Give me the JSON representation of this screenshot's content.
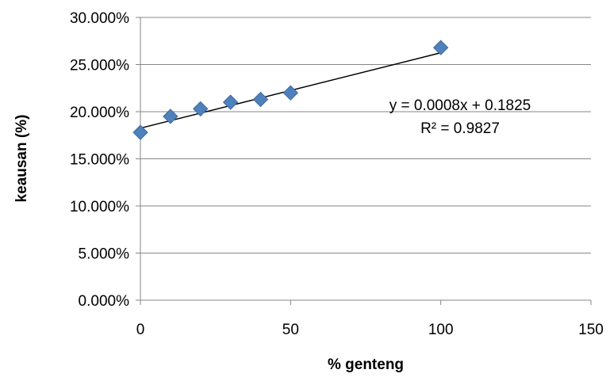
{
  "chart_data": {
    "type": "scatter",
    "xlabel": "% genteng",
    "ylabel": "keausan (%)",
    "xlim": [
      0,
      150
    ],
    "ylim": [
      0,
      0.3
    ],
    "x_ticks": [
      "0",
      "50",
      "100",
      "150"
    ],
    "y_ticks": [
      "0.000%",
      "5.000%",
      "10.000%",
      "15.000%",
      "20.000%",
      "25.000%",
      "30.000%"
    ],
    "grid": "horizontal",
    "series": [
      {
        "marker": "diamond",
        "color": "#4F81BD",
        "points": [
          {
            "x": 0,
            "y": 0.178
          },
          {
            "x": 10,
            "y": 0.195
          },
          {
            "x": 20,
            "y": 0.203
          },
          {
            "x": 30,
            "y": 0.21
          },
          {
            "x": 40,
            "y": 0.213
          },
          {
            "x": 50,
            "y": 0.22
          },
          {
            "x": 100,
            "y": 0.268
          }
        ]
      }
    ],
    "trendline": {
      "type": "linear",
      "slope": 0.0008,
      "intercept": 0.1825,
      "x_range": [
        0,
        100
      ],
      "color": "#000000",
      "equation_label": "y = 0.0008x + 0.1825",
      "r2_label": "R² = 0.9827"
    }
  }
}
